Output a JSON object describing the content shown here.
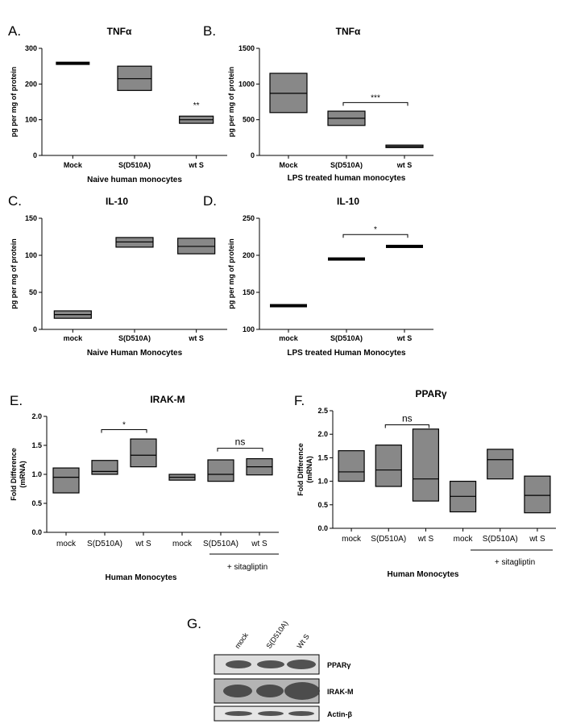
{
  "figure_labels": [
    "A.",
    "B.",
    "C.",
    "D.",
    "E.",
    "F.",
    "G."
  ],
  "colors": {
    "box_fill": "#888888",
    "stroke": "#000000",
    "background": "#ffffff"
  },
  "chart_data": [
    {
      "id": "A",
      "type": "box",
      "title": "TNFα",
      "ylabel": "pg per mg of protein",
      "xlabel": "Naive human monocytes",
      "ylim": [
        0,
        300
      ],
      "yticks": [
        "0",
        "100",
        "200",
        "300"
      ],
      "categories": [
        "Mock",
        "S(D510A)",
        "wt S"
      ],
      "boxes": [
        {
          "low": 258,
          "mid": 258,
          "high": 258
        },
        {
          "low": 182,
          "mid": 215,
          "high": 250
        },
        {
          "low": 90,
          "mid": 100,
          "high": 110
        }
      ],
      "annotations": [
        {
          "text": "**",
          "over": 2
        }
      ]
    },
    {
      "id": "B",
      "type": "box",
      "title": "TNFα",
      "ylabel": "pg per mg of protein",
      "xlabel": "LPS treated human monocytes",
      "ylim": [
        0,
        1500
      ],
      "yticks": [
        "0",
        "500",
        "1000",
        "1500"
      ],
      "categories": [
        "Mock",
        "S(D510A)",
        "wt S"
      ],
      "boxes": [
        {
          "low": 600,
          "mid": 870,
          "high": 1150
        },
        {
          "low": 420,
          "mid": 520,
          "high": 620
        },
        {
          "low": 110,
          "mid": 125,
          "high": 145
        }
      ],
      "bracket": {
        "from": 1,
        "to": 2,
        "y": 740,
        "text": "***"
      }
    },
    {
      "id": "C",
      "type": "box",
      "title": "IL-10",
      "ylabel": "pg per mg of protein",
      "xlabel": "Naive Human Monocytes",
      "ylim": [
        0,
        150
      ],
      "yticks": [
        "0",
        "50",
        "100",
        "150"
      ],
      "categories": [
        "mock",
        "S(D510A)",
        "wt S"
      ],
      "boxes": [
        {
          "low": 15,
          "mid": 20,
          "high": 25
        },
        {
          "low": 111,
          "mid": 118,
          "high": 124
        },
        {
          "low": 102,
          "mid": 112,
          "high": 123
        }
      ]
    },
    {
      "id": "D",
      "type": "box",
      "title": "IL-10",
      "ylabel": "pg per mg of protein",
      "xlabel": "LPS treated Human Monocytes",
      "ylim": [
        100,
        250
      ],
      "yticks": [
        "100",
        "150",
        "200",
        "250"
      ],
      "categories": [
        "mock",
        "S(D510A)",
        "wt S"
      ],
      "boxes": [
        {
          "low": 132,
          "mid": 132,
          "high": 132
        },
        {
          "low": 195,
          "mid": 195,
          "high": 195
        },
        {
          "low": 212,
          "mid": 212,
          "high": 212
        }
      ],
      "bracket": {
        "from": 1,
        "to": 2,
        "y": 228,
        "text": "*"
      }
    },
    {
      "id": "E",
      "type": "box",
      "title": "IRAK-M",
      "ylabel": "Fold Difference (mRNA)",
      "xlabel": "Human Monocytes",
      "group_label": "+ sitagliptin",
      "ylim": [
        0,
        2.0
      ],
      "yticks": [
        "0.0",
        "0.5",
        "1.0",
        "1.5",
        "2.0"
      ],
      "categories": [
        "mock",
        "S(D510A)",
        "wt S",
        "mock",
        "S(D510A)",
        "wt S"
      ],
      "boxes": [
        {
          "low": 0.68,
          "mid": 0.95,
          "high": 1.11
        },
        {
          "low": 1.0,
          "mid": 1.05,
          "high": 1.24
        },
        {
          "low": 1.13,
          "mid": 1.33,
          "high": 1.61
        },
        {
          "low": 0.9,
          "mid": 0.95,
          "high": 1.0
        },
        {
          "low": 0.88,
          "mid": 1.0,
          "high": 1.25
        },
        {
          "low": 0.99,
          "mid": 1.13,
          "high": 1.27
        }
      ],
      "brackets": [
        {
          "from": 1,
          "to": 2,
          "y": 1.77,
          "text": "*"
        },
        {
          "from": 4,
          "to": 5,
          "y": 1.45,
          "text": "ns"
        }
      ]
    },
    {
      "id": "F",
      "type": "box",
      "title": "PPARγ",
      "ylabel": "Fold Difference (mRNA)",
      "xlabel": "Human Monocytes",
      "group_label": "+ sitagliptin",
      "ylim": [
        0,
        2.5
      ],
      "yticks": [
        "0.0",
        "0.5",
        "1.0",
        "1.5",
        "2.0",
        "2.5"
      ],
      "categories": [
        "mock",
        "S(D510A)",
        "wt S",
        "mock",
        "S(D510A)",
        "wt S"
      ],
      "boxes": [
        {
          "low": 1.0,
          "mid": 1.2,
          "high": 1.65
        },
        {
          "low": 0.89,
          "mid": 1.24,
          "high": 1.77
        },
        {
          "low": 0.58,
          "mid": 1.05,
          "high": 2.11
        },
        {
          "low": 0.35,
          "mid": 0.68,
          "high": 1.0
        },
        {
          "low": 1.05,
          "mid": 1.46,
          "high": 1.68
        },
        {
          "low": 0.33,
          "mid": 0.7,
          "high": 1.11
        }
      ],
      "bracket": {
        "from": 1,
        "to": 2,
        "y": 2.2,
        "text": "ns"
      }
    }
  ],
  "western_blot": {
    "label": "G.",
    "lanes": [
      "mock",
      "S(D510A)",
      "Wt S"
    ],
    "rows": [
      "PPARγ",
      "IRAK-M",
      "Actin-β"
    ]
  }
}
